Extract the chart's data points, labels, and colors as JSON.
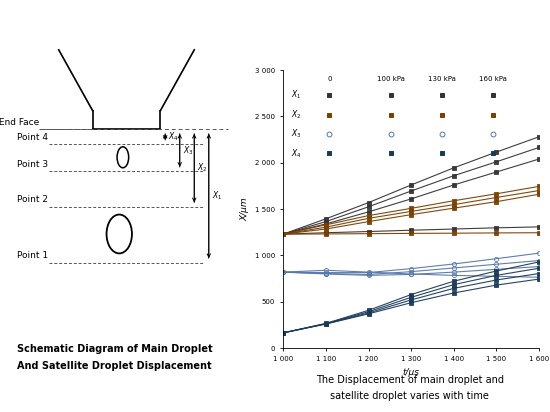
{
  "left_title_line1": "Schematic Diagram of Main Droplet",
  "left_title_line2": "And Satellite Droplet Displacement",
  "right_title_line1": "The Displacement of main droplet and",
  "right_title_line2": "satellite droplet varies with time",
  "xlabel": "t/μs",
  "ylabel": "X/μm",
  "xlim": [
    1000,
    1600
  ],
  "ylim": [
    0,
    3000
  ],
  "xticks": [
    1000,
    1100,
    1200,
    1300,
    1400,
    1500,
    1600
  ],
  "yticks": [
    0,
    500,
    1000,
    1500,
    2000,
    2500,
    3000
  ],
  "ytick_labels": [
    "0",
    "500",
    "1 000",
    "1 500",
    "2 000",
    "2 500",
    "3 000"
  ],
  "xtick_labels": [
    "1 000",
    "1 100",
    "1 200",
    "1 300",
    "1 400",
    "1 500",
    "1 600"
  ],
  "t_values": [
    1000,
    1100,
    1200,
    1300,
    1400,
    1500,
    1600
  ],
  "pressure_keys": [
    "0",
    "100kPa",
    "130kPa",
    "160kPa"
  ],
  "pressure_labels": [
    "0",
    "100 kPa",
    "130 kPa",
    "160 kPa"
  ],
  "series": [
    {
      "key": "X1",
      "label": "X₁",
      "color": "#333333",
      "marker": "s",
      "open": false,
      "data": {
        "0": [
          1230,
          1245,
          1258,
          1272,
          1285,
          1298,
          1308
        ],
        "100kPa": [
          1230,
          1340,
          1470,
          1610,
          1760,
          1900,
          2040
        ],
        "130kPa": [
          1230,
          1365,
          1525,
          1695,
          1860,
          2010,
          2165
        ],
        "160kPa": [
          1230,
          1395,
          1570,
          1760,
          1945,
          2115,
          2280
        ]
      }
    },
    {
      "key": "X2",
      "label": "X₂",
      "color": "#7B3F00",
      "marker": "s",
      "open": false,
      "data": {
        "0": [
          1230,
          1232,
          1235,
          1238,
          1240,
          1243,
          1245
        ],
        "100kPa": [
          1230,
          1285,
          1365,
          1440,
          1510,
          1580,
          1660
        ],
        "130kPa": [
          1230,
          1305,
          1400,
          1475,
          1548,
          1625,
          1700
        ],
        "160kPa": [
          1230,
          1330,
          1430,
          1508,
          1590,
          1665,
          1745
        ]
      }
    },
    {
      "key": "X3",
      "label": "X₃",
      "color": "#5577aa",
      "marker": "o",
      "open": true,
      "data": {
        "0": [
          820,
          840,
          820,
          800,
          785,
          775,
          765
        ],
        "100kPa": [
          820,
          800,
          785,
          795,
          820,
          850,
          880
        ],
        "130kPa": [
          820,
          805,
          795,
          825,
          865,
          905,
          945
        ],
        "160kPa": [
          820,
          815,
          815,
          858,
          908,
          965,
          1025
        ]
      }
    },
    {
      "key": "X4",
      "label": "X₄",
      "color": "#1a3a5c",
      "marker": "s",
      "open": false,
      "data": {
        "0": [
          165,
          260,
          370,
          490,
          595,
          680,
          745
        ],
        "100kPa": [
          165,
          262,
          380,
          520,
          645,
          735,
          805
        ],
        "130kPa": [
          165,
          264,
          393,
          548,
          685,
          785,
          862
        ],
        "160kPa": [
          165,
          267,
          408,
          578,
          722,
          832,
          930
        ]
      }
    }
  ],
  "bg_color": "#ffffff",
  "nozzle_label": "Nozzle End Face",
  "point_labels": [
    "Point 1",
    "Point 2",
    "Point 3",
    "Point 4"
  ]
}
